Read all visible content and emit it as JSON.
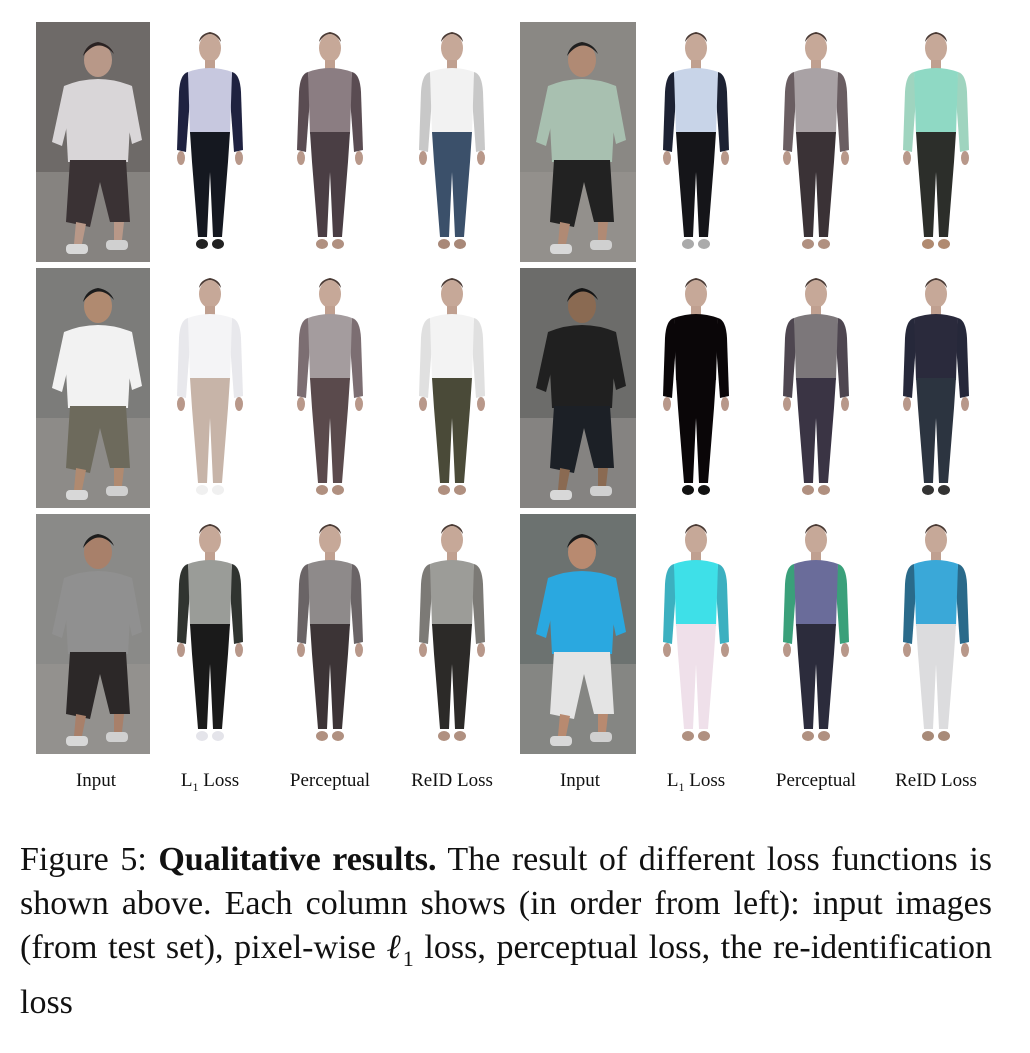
{
  "figure": {
    "column_labels": [
      {
        "main": "Input",
        "sub": ""
      },
      {
        "main": "L",
        "sub": "1",
        "rest": " Loss"
      },
      {
        "main": "Perceptual",
        "sub": ""
      },
      {
        "main": "ReID Loss",
        "sub": ""
      },
      {
        "main": "Input",
        "sub": ""
      },
      {
        "main": "L",
        "sub": "1",
        "rest": " Loss"
      },
      {
        "main": "Perceptual",
        "sub": ""
      },
      {
        "main": "ReID Loss",
        "sub": ""
      }
    ],
    "rows": [
      [
        {
          "kind": "photo",
          "bg": "#6e6a68",
          "shirt": "#d9d6d8",
          "pants": "#3a3234",
          "skin": "#b89888",
          "hair": "#2a2222"
        },
        {
          "kind": "render",
          "shirt": "#c7c8df",
          "sleeve": "#1f2240",
          "pants": "#151820",
          "shoe": "#222"
        },
        {
          "kind": "render",
          "shirt": "#8b7d82",
          "sleeve": "#5a4c52",
          "pants": "#4a3e44",
          "shoe": "#b09080"
        },
        {
          "kind": "render",
          "shirt": "#f2f2f2",
          "sleeve": "#c8c8c8",
          "pants": "#3b506a",
          "shoe": "#a88878"
        },
        {
          "kind": "photo",
          "bg": "#8a8884",
          "shirt": "#a8c0b0",
          "pants": "#222222",
          "skin": "#b08a74",
          "hair": "#202020"
        },
        {
          "kind": "render",
          "shirt": "#c8d4e8",
          "sleeve": "#1d2233",
          "pants": "#151519",
          "shoe": "#aaaaaa"
        },
        {
          "kind": "render",
          "shirt": "#a9a2a5",
          "sleeve": "#6a5e62",
          "pants": "#3a3236",
          "shoe": "#b09080"
        },
        {
          "kind": "render",
          "shirt": "#8fd9c4",
          "sleeve": "#9fd4bf",
          "pants": "#2c2e2a",
          "shoe": "#b08a70"
        }
      ],
      [
        {
          "kind": "photo",
          "bg": "#7c7c7a",
          "shirt": "#f2f2f2",
          "pants": "#6d6a5c",
          "skin": "#b08a70",
          "hair": "#1c1c1c"
        },
        {
          "kind": "render",
          "shirt": "#f4f4f6",
          "sleeve": "#e8e8ec",
          "pants": "#c7b4a8",
          "shoe": "#f0f0f0"
        },
        {
          "kind": "render",
          "shirt": "#a49c9e",
          "sleeve": "#7c6e72",
          "pants": "#5a4a4c",
          "shoe": "#b09080"
        },
        {
          "kind": "render",
          "shirt": "#f3f3f3",
          "sleeve": "#e0e0e0",
          "pants": "#4a4a38",
          "shoe": "#b09080"
        },
        {
          "kind": "photo",
          "bg": "#6c6c6a",
          "shirt": "#202020",
          "pants": "#1c2026",
          "skin": "#8a6a52",
          "hair": "#151515"
        },
        {
          "kind": "render",
          "shirt": "#0a0608",
          "sleeve": "#0a0608",
          "pants": "#0a0608",
          "shoe": "#111"
        },
        {
          "kind": "render",
          "shirt": "#7c777a",
          "sleeve": "#4e4650",
          "pants": "#3a3444",
          "shoe": "#b09080"
        },
        {
          "kind": "render",
          "shirt": "#2a2a3c",
          "sleeve": "#26283a",
          "pants": "#2c3440",
          "shoe": "#333"
        }
      ],
      [
        {
          "kind": "photo",
          "bg": "#8a8a88",
          "shirt": "#909090",
          "pants": "#2c2828",
          "skin": "#a8806a",
          "hair": "#1c1c1c"
        },
        {
          "kind": "render",
          "shirt": "#9a9c98",
          "sleeve": "#303430",
          "pants": "#1a1a1a",
          "shoe": "#e4e4ea"
        },
        {
          "kind": "render",
          "shirt": "#8e8a8a",
          "sleeve": "#6a6466",
          "pants": "#3c3436",
          "shoe": "#b09080"
        },
        {
          "kind": "render",
          "shirt": "#9c9c98",
          "sleeve": "#7c7a76",
          "pants": "#2c2a28",
          "shoe": "#b09080"
        },
        {
          "kind": "photo",
          "bg": "#6c7270",
          "shirt": "#2aa8e0",
          "pants": "#e4e4e4",
          "skin": "#b88a70",
          "hair": "#1a1a1a"
        },
        {
          "kind": "render",
          "shirt": "#3ee0e8",
          "sleeve": "#3cb0c0",
          "pants": "#efe0ea",
          "shoe": "#b09080"
        },
        {
          "kind": "render",
          "shirt": "#6a6c9a",
          "sleeve": "#3aa07a",
          "pants": "#2c2c3c",
          "shoe": "#b09080"
        },
        {
          "kind": "render",
          "shirt": "#3aa8d8",
          "sleeve": "#2a6a8a",
          "pants": "#dcdcde",
          "shoe": "#a88a78"
        }
      ]
    ]
  },
  "caption": {
    "prefix": "Figure 5: ",
    "bold": "Qualitative results.",
    "text1": " The result of different loss functions is shown above. Each column shows (in order from left): input images (from test set), pixel-wise ",
    "math": "ℓ",
    "math_sub": "1",
    "text2": " loss, perceptual loss, the re-identification loss"
  }
}
